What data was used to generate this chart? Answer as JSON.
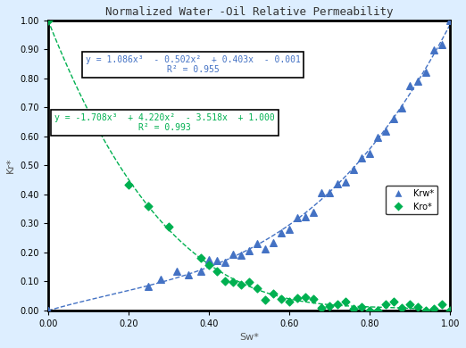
{
  "title": "Normalized Water -Oil Relative Permeability",
  "xlabel": "Sw*",
  "ylabel": "Kr*",
  "xlim": [
    0.0,
    1.0
  ],
  "ylim": [
    0.0,
    1.0
  ],
  "xticks": [
    0.0,
    0.2,
    0.4,
    0.6,
    0.8,
    1.0
  ],
  "yticks": [
    0.0,
    0.1,
    0.2,
    0.3,
    0.4,
    0.5,
    0.6,
    0.7,
    0.8,
    0.9,
    1.0
  ],
  "krw_color": "#4472C4",
  "kro_color": "#00B050",
  "krw_eq": "y = 1.086x³  - 0.502x²  + 0.403x  - 0.001",
  "krw_r2": "R² = 0.955",
  "kro_eq": "y = -1.708x³  + 4.220x²  - 3.518x  + 1.000",
  "kro_r2": "R² = 0.993",
  "bg_color": "#DDEEFF",
  "plot_bg": "#FFFFFF"
}
